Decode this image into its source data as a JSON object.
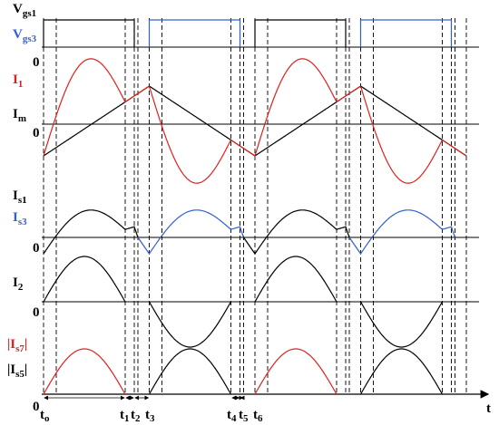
{
  "labels": [
    {
      "main": "V",
      "sub": "gs1",
      "color": "#000000"
    },
    {
      "main": "V",
      "sub": "gs3",
      "color": "#3060d0"
    },
    {
      "main": "I",
      "sub": "1",
      "color": "#e0201c"
    },
    {
      "main": "I",
      "sub": "m",
      "color": "#000000"
    },
    {
      "main": "I",
      "sub": "s1",
      "color": "#000000"
    },
    {
      "main": "I",
      "sub": "s3",
      "color": "#3060d0"
    },
    {
      "main": "I",
      "sub": "2",
      "color": "#000000"
    },
    {
      "main": "|I",
      "sub": "s7",
      "tail": "|",
      "color": "#e0201c"
    },
    {
      "main": "|I",
      "sub": "s5",
      "tail": "|",
      "color": "#000000"
    }
  ],
  "zeros": [
    "0",
    "0",
    "0",
    "0",
    "0"
  ],
  "times": [
    {
      "main": "t",
      "sub": "o"
    },
    {
      "main": "t",
      "sub": "1"
    },
    {
      "main": "t",
      "sub": "2"
    },
    {
      "main": "t",
      "sub": "3"
    },
    {
      "main": "t",
      "sub": "4"
    },
    {
      "main": "t",
      "sub": "5"
    },
    {
      "main": "t",
      "sub": "6"
    }
  ],
  "time_axis": "t"
}
